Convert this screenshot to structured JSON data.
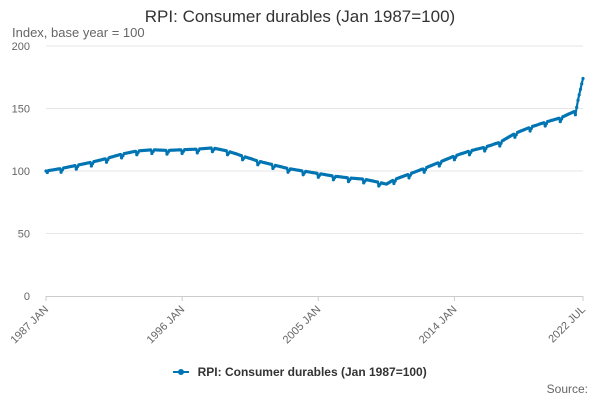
{
  "chart_data": {
    "type": "line",
    "title": "RPI: Consumer durables (Jan 1987=100)",
    "subtitle": "Index, base year = 100",
    "xlabel": "",
    "ylabel": "",
    "xlim": [
      "1987 JAN",
      "2022 JUL"
    ],
    "ylim": [
      0,
      200
    ],
    "yticks": [
      0,
      50,
      100,
      150,
      200
    ],
    "xticks": [
      "1987 JAN",
      "1996 JAN",
      "2005 JAN",
      "2014 JAN",
      "2022 JUL"
    ],
    "grid": "horizontal",
    "legend_position": "bottom",
    "color": "#0075b3",
    "seasonal_dip": 3,
    "series": [
      {
        "name": "RPI: Consumer durables (Jan 1987=100)",
        "x": [
          "1987-01",
          "1988-01",
          "1989-01",
          "1990-01",
          "1991-01",
          "1992-01",
          "1993-01",
          "1994-01",
          "1995-01",
          "1996-01",
          "1997-01",
          "1998-01",
          "1999-01",
          "2000-01",
          "2001-01",
          "2002-01",
          "2003-01",
          "2004-01",
          "2005-01",
          "2006-01",
          "2007-01",
          "2008-01",
          "2009-01",
          "2009-07",
          "2010-01",
          "2011-01",
          "2012-01",
          "2013-01",
          "2014-01",
          "2015-01",
          "2016-01",
          "2017-01",
          "2018-01",
          "2019-01",
          "2020-01",
          "2021-01",
          "2022-01",
          "2022-07"
        ],
        "values": [
          100,
          102,
          104.5,
          107,
          110,
          113.5,
          116,
          117,
          116.5,
          117,
          117.5,
          118.5,
          116,
          112,
          108,
          105,
          102,
          100,
          98,
          96,
          94.5,
          93.5,
          91,
          89.5,
          93,
          97.5,
          102,
          107,
          112,
          116,
          119,
          123,
          130,
          135,
          139,
          142.5,
          148,
          174
        ]
      }
    ]
  },
  "legend": {
    "label": "RPI: Consumer durables (Jan 1987=100)"
  },
  "source": {
    "label": "Source:"
  }
}
